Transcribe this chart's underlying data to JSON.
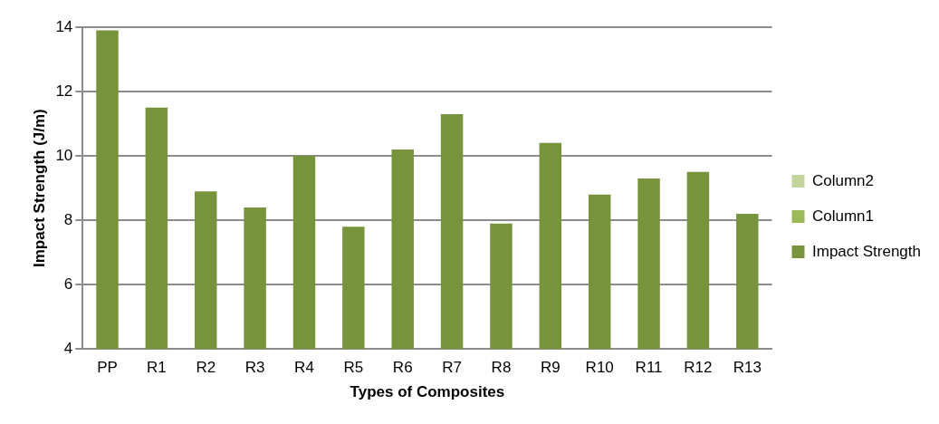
{
  "chart_data": {
    "type": "bar",
    "xlabel": "Types of Composites",
    "ylabel": "Impact Strength (J/m)",
    "categories": [
      "PP",
      "R1",
      "R2",
      "R3",
      "R4",
      "R5",
      "R6",
      "R7",
      "R8",
      "R9",
      "R10",
      "R11",
      "R12",
      "R13"
    ],
    "series": [
      {
        "name": "Column2",
        "color": "#c3d69b",
        "values": [
          null,
          null,
          null,
          null,
          null,
          null,
          null,
          null,
          null,
          null,
          null,
          null,
          null,
          null
        ]
      },
      {
        "name": "Column1",
        "color": "#9bbb59",
        "values": [
          null,
          null,
          null,
          null,
          null,
          null,
          null,
          null,
          null,
          null,
          null,
          null,
          null,
          null
        ]
      },
      {
        "name": "Impact Strength",
        "color": "#77933c",
        "values": [
          13.9,
          11.5,
          8.9,
          8.4,
          10.0,
          7.8,
          10.2,
          11.3,
          7.9,
          10.4,
          8.8,
          9.3,
          9.5,
          8.2
        ]
      }
    ],
    "ylim": [
      4,
      14
    ],
    "yticks": [
      4,
      6,
      8,
      10,
      12,
      14
    ],
    "grid": "y",
    "legend": "right"
  }
}
